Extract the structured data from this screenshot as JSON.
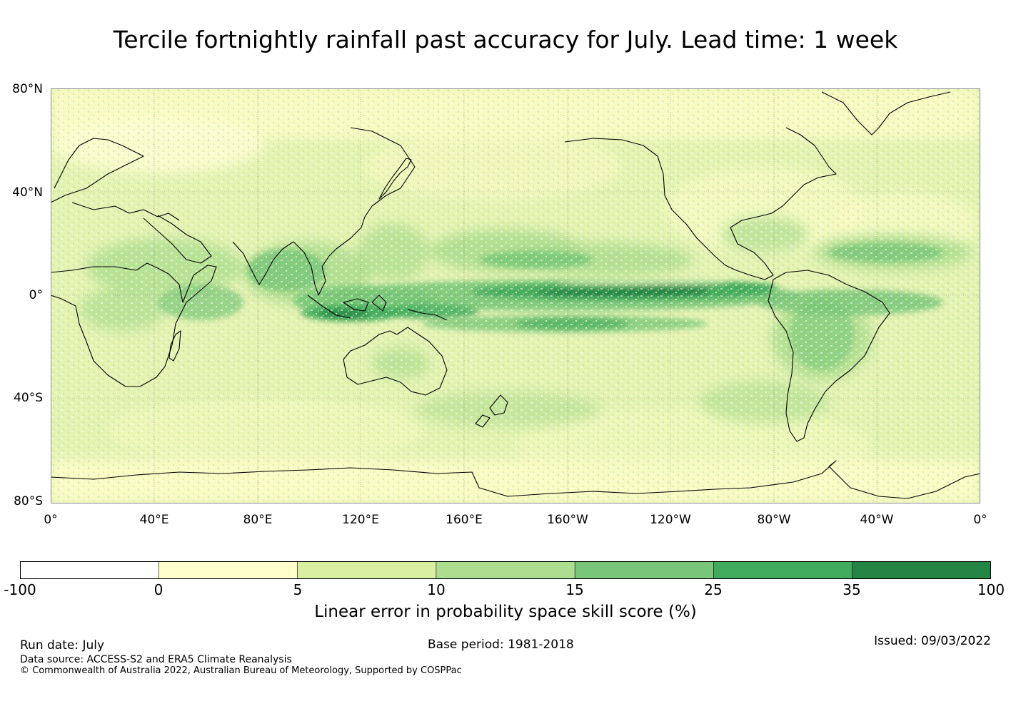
{
  "title": "Tercile fortnightly rainfall past accuracy for July. Lead time: 1 week",
  "map": {
    "lat_labels": [
      "80°N",
      "40°N",
      "0°",
      "40°S",
      "80°S"
    ],
    "lon_labels": [
      "0°",
      "40°E",
      "80°E",
      "120°E",
      "160°E",
      "160°W",
      "120°W",
      "80°W",
      "40°W",
      "0°"
    ],
    "lat_range": [
      -80,
      80
    ],
    "lon_range": [
      0,
      360
    ],
    "gridlines": true,
    "skill_regions": [
      {
        "name": "central-pacific-equatorial-band",
        "level": 35
      },
      {
        "name": "maritime-continent",
        "level": 25
      },
      {
        "name": "amazon-basin",
        "level": 15
      },
      {
        "name": "north-pacific-itcz",
        "level": 15
      },
      {
        "name": "atlantic-itcz",
        "level": 15
      },
      {
        "name": "southern-ocean",
        "level": 5
      }
    ]
  },
  "colorbar": {
    "title": "Linear error in probability space skill score (%)",
    "ticks": [
      "-100",
      "0",
      "5",
      "10",
      "15",
      "25",
      "35",
      "100"
    ],
    "colors": [
      "#ffffff",
      "#ffffcc",
      "#d9f0a3",
      "#addd8e",
      "#78c679",
      "#41ab5d",
      "#238443"
    ]
  },
  "footer": {
    "run_date": "Run date: July",
    "base_period": "Base period: 1981-2018",
    "issued": "Issued: 09/03/2022",
    "data_source": "Data source: ACCESS-S2 and ERA5 Climate Reanalysis",
    "copyright": "© Commonwealth of Australia 2022, Australian Bureau of Meteorology, Supported by COSPPac"
  }
}
